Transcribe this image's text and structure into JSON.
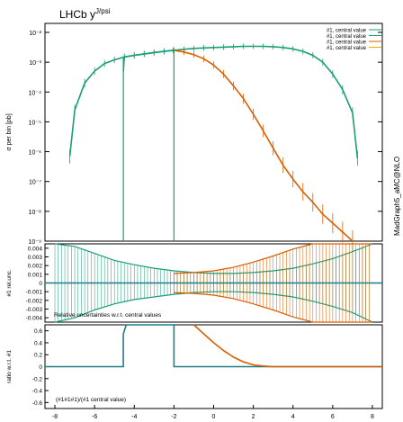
{
  "header": {
    "title_base": "LHCb y",
    "title_sup": "J/psi",
    "side_label": "MadGraph5_aMC@NLO"
  },
  "colors": {
    "series1": "#1a9e77",
    "series2": "#1a9e77",
    "series3": "#d95f02",
    "series4": "#e6ab02",
    "ratio_line": "#1b7f86",
    "frame": "#000000"
  },
  "chart_data": [
    {
      "type": "line",
      "panel": "main",
      "ylabel": "σ per bin [pb]",
      "yscale": "log",
      "ylim": [
        1e-09,
        0.02
      ],
      "xlim": [
        -8.5,
        8.5
      ],
      "ytick_labels": [
        "10⁻²",
        "10⁻³",
        "10⁻⁴",
        "10⁻⁵",
        "10⁻⁶",
        "10⁻⁷",
        "10⁻⁸",
        "10⁻⁹"
      ],
      "grid": false,
      "legend_position": "top-right",
      "legend": [
        "#1, central value",
        "#1, central value",
        "#1, central value",
        "#1, central value"
      ],
      "series": [
        {
          "name": "#1, central value",
          "x": [
            -7.25,
            -7.0,
            -6.5,
            -6.0,
            -5.5,
            -5.0,
            -4.5,
            -4.0,
            -3.5,
            -3.0,
            -2.5,
            -2.0,
            -1.5,
            -1.0,
            -0.5,
            0.0,
            0.5,
            1.0,
            1.5,
            2.0,
            2.5,
            3.0,
            3.5,
            4.0,
            4.5,
            5.0,
            5.5,
            6.0,
            6.5,
            7.0,
            7.25
          ],
          "y": [
            7e-07,
            2.5e-05,
            0.0002,
            0.0005,
            0.0009,
            0.0012,
            0.0015,
            0.0017,
            0.0019,
            0.0021,
            0.0023,
            0.0025,
            0.0027,
            0.0029,
            0.003,
            0.0031,
            0.0032,
            0.0033,
            0.0034,
            0.0034,
            0.0034,
            0.0033,
            0.0031,
            0.0028,
            0.0023,
            0.0017,
            0.001,
            0.0004,
            0.00012,
            2e-05,
            6e-07
          ]
        },
        {
          "name": "#1, central value",
          "x": [
            -4.55,
            -4.5,
            -4.0,
            -3.5,
            -3.0,
            -2.5,
            -2.05
          ],
          "y": [
            0.0005,
            0.0015,
            0.0017,
            0.0019,
            0.0021,
            0.0023,
            0.0025
          ]
        },
        {
          "name": "#1, central value",
          "x": [
            -2.0,
            -1.5,
            -1.0,
            -0.5,
            0.0,
            0.5,
            1.0,
            1.5,
            2.0,
            2.5,
            3.0,
            3.5,
            4.0,
            4.5,
            5.0,
            5.5,
            6.0,
            6.5,
            7.0
          ],
          "y": [
            0.0025,
            0.0022,
            0.0018,
            0.0013,
            0.0008,
            0.0004,
            0.00016,
            6e-05,
            1.8e-05,
            5e-06,
            1.3e-06,
            3.5e-07,
            1.2e-07,
            4.5e-08,
            2e-08,
            8e-09,
            4e-09,
            2e-09,
            1e-09
          ]
        },
        {
          "name": "#1, central value",
          "x": [],
          "y": []
        }
      ]
    },
    {
      "type": "line",
      "panel": "uncertainty",
      "ylabel": "#1 rel.unc.",
      "ylim": [
        -0.0045,
        0.0045
      ],
      "ytick_labels": [
        "0.004",
        "0.003",
        "0.002",
        "0.001",
        "0",
        "-0.001",
        "-0.002",
        "-0.003",
        "-0.004"
      ],
      "annotation": "Relative uncertainties w.r.t. central values",
      "series": [
        {
          "name": "#1, central value",
          "x": [
            -8.0,
            -7.0,
            -6.0,
            -5.0,
            -4.0,
            -3.0,
            -2.0,
            -1.0,
            0.0,
            1.0,
            2.0,
            3.0,
            4.0,
            5.0,
            6.0,
            7.0,
            8.0
          ],
          "upper": [
            0.0045,
            0.0042,
            0.0034,
            0.0026,
            0.0021,
            0.0017,
            0.0014,
            0.0012,
            0.0011,
            0.0011,
            0.0012,
            0.0014,
            0.0017,
            0.0022,
            0.0028,
            0.0036,
            0.0045
          ],
          "lower": [
            -0.0045,
            -0.004,
            -0.0031,
            -0.0024,
            -0.0019,
            -0.0016,
            -0.0013,
            -0.0011,
            -0.001,
            -0.001,
            -0.0011,
            -0.0013,
            -0.0016,
            -0.0021,
            -0.0027,
            -0.0034,
            -0.0045
          ]
        },
        {
          "name": "#1, central value",
          "x": [
            -2.0,
            -1.0,
            0.0,
            1.0,
            2.0,
            3.0,
            4.0,
            5.0,
            6.0,
            7.0,
            8.0
          ],
          "upper": [
            0.0011,
            0.0012,
            0.0014,
            0.0018,
            0.0024,
            0.0031,
            0.0039,
            0.0045,
            0.0045,
            0.0045,
            0.0045
          ],
          "lower": [
            -0.0011,
            -0.0012,
            -0.0014,
            -0.0018,
            -0.0024,
            -0.0031,
            -0.0039,
            -0.0045,
            -0.0045,
            -0.0045,
            -0.0045
          ]
        }
      ]
    },
    {
      "type": "line",
      "panel": "ratio",
      "ylabel": "ratio w.r.t. #1",
      "xlim": [
        -8.5,
        8.5
      ],
      "ylim": [
        -0.7,
        0.7
      ],
      "xtick_labels": [
        "-8",
        "-6",
        "-4",
        "-2",
        "0",
        "2",
        "4",
        "6",
        "8"
      ],
      "ytick_labels": [
        "0.6",
        "0.4",
        "0.2",
        "0",
        "-0.2",
        "-0.4",
        "-0.6"
      ],
      "annotation": "(#1#1#1)/(#1 central value)",
      "series": [
        {
          "name": "#1, central value",
          "x": [
            -8.5,
            -4.55,
            -4.55,
            -4.4,
            -4.4,
            -2.0,
            -2.0,
            8.5
          ],
          "y": [
            0,
            0,
            0.55,
            0.7,
            0.7,
            0.7,
            0,
            0
          ]
        },
        {
          "name": "#1, central value",
          "x": [
            -1.0,
            -0.5,
            0.0,
            0.5,
            1.0,
            1.5,
            2.0,
            2.5,
            3.0,
            8.5
          ],
          "y": [
            0.7,
            0.55,
            0.4,
            0.27,
            0.16,
            0.08,
            0.03,
            0.01,
            0.0,
            0.0
          ]
        }
      ]
    }
  ]
}
